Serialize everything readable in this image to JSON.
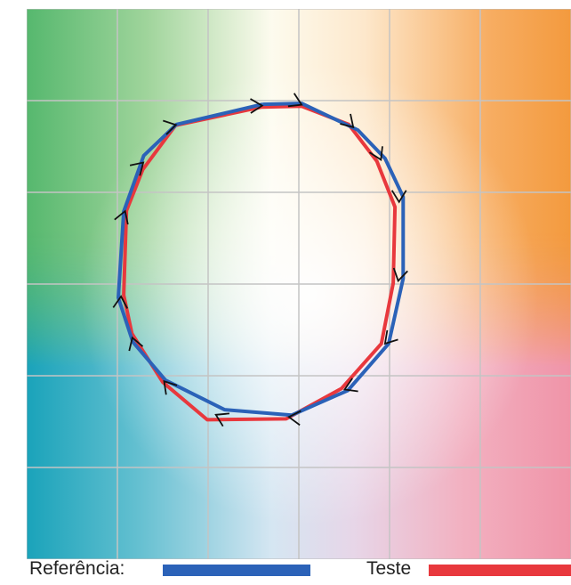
{
  "chart_data": {
    "type": "line",
    "title": "",
    "xlabel": "",
    "ylabel": "",
    "xlim": [
      0,
      6
    ],
    "ylim": [
      0,
      6
    ],
    "grid": true,
    "background": "color-gamut gradient (green top-left, orange top-right, teal bottom-left, pink bottom-right, white center)",
    "legend_position": "bottom",
    "direction_markers": "arrowheads on each vertex",
    "series": [
      {
        "name": "Referência:",
        "color": "#2b62b8",
        "points": [
          [
            2.6,
            4.96
          ],
          [
            3.03,
            4.97
          ],
          [
            3.65,
            4.68
          ],
          [
            3.95,
            4.37
          ],
          [
            4.15,
            3.95
          ],
          [
            4.15,
            3.06
          ],
          [
            3.99,
            2.35
          ],
          [
            3.54,
            1.84
          ],
          [
            2.92,
            1.57
          ],
          [
            2.18,
            1.63
          ],
          [
            1.53,
            1.95
          ],
          [
            1.17,
            2.37
          ],
          [
            1.01,
            2.85
          ],
          [
            1.07,
            3.79
          ],
          [
            1.29,
            4.4
          ],
          [
            1.65,
            4.74
          ]
        ]
      },
      {
        "name": "Teste",
        "color": "#e8383d",
        "points": [
          [
            2.59,
            4.93
          ],
          [
            3.03,
            4.94
          ],
          [
            3.55,
            4.74
          ],
          [
            3.86,
            4.34
          ],
          [
            4.06,
            3.84
          ],
          [
            4.04,
            3.01
          ],
          [
            3.91,
            2.35
          ],
          [
            3.47,
            1.86
          ],
          [
            2.86,
            1.53
          ],
          [
            1.99,
            1.52
          ],
          [
            1.5,
            1.93
          ],
          [
            1.16,
            2.46
          ],
          [
            1.07,
            2.88
          ],
          [
            1.1,
            3.8
          ],
          [
            1.28,
            4.25
          ],
          [
            1.64,
            4.73
          ]
        ]
      }
    ]
  },
  "legend": {
    "reference_label": "Referência:",
    "test_label": "Teste"
  },
  "colors": {
    "grid": "#c4c4c4",
    "reference": "#2b62b8",
    "test": "#e8383d",
    "arrow": "#111111"
  }
}
